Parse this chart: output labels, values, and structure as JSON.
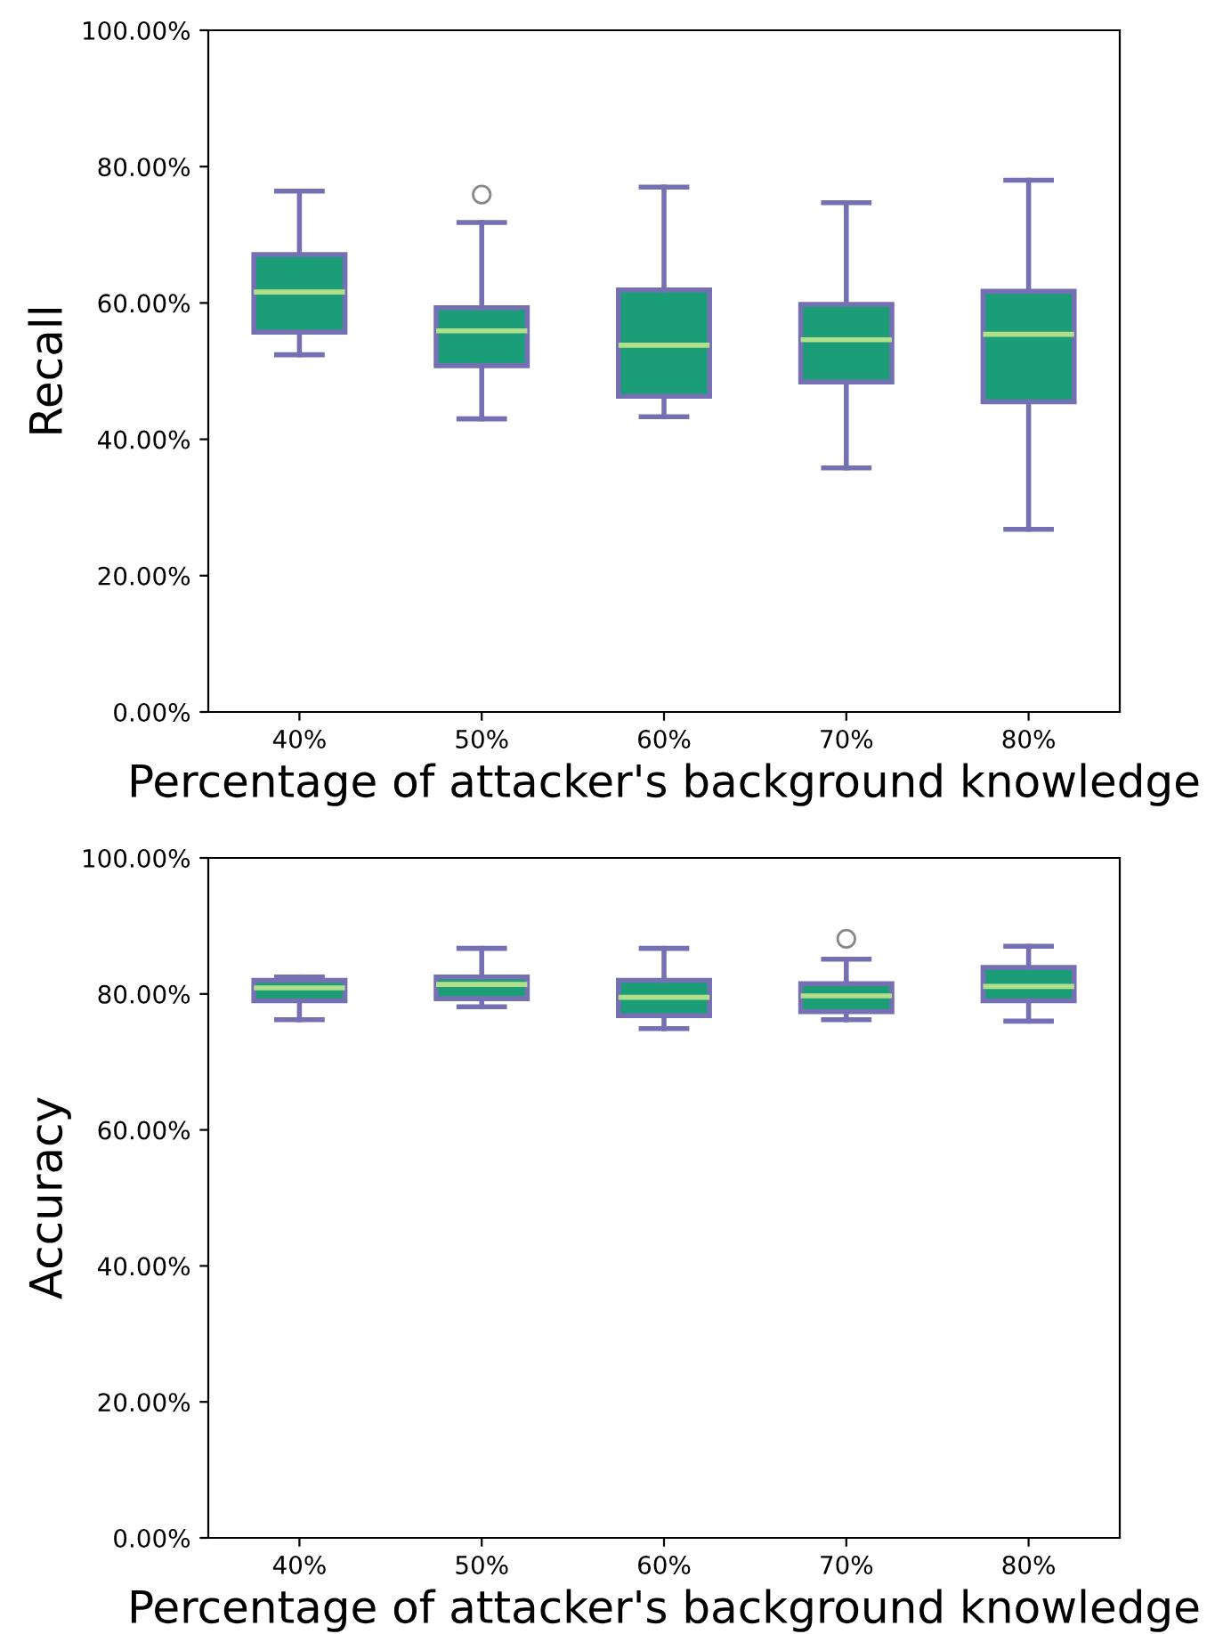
{
  "chart_data": [
    {
      "type": "box",
      "ylabel": "Recall",
      "xlabel": "Percentage of attacker's background knowledge",
      "categories": [
        "40%",
        "50%",
        "60%",
        "70%",
        "80%"
      ],
      "ylim": [
        0,
        100
      ],
      "yticks": [
        {
          "value": 0,
          "label": "0.00%"
        },
        {
          "value": 20,
          "label": "20.00%"
        },
        {
          "value": 40,
          "label": "40.00%"
        },
        {
          "value": 60,
          "label": "60.00%"
        },
        {
          "value": 80,
          "label": "80.00%"
        },
        {
          "value": 100,
          "label": "100.00%"
        }
      ],
      "grid": false,
      "color": "#1b9e77",
      "boxes": [
        {
          "low": 52.4,
          "q1": 55.7,
          "median": 61.6,
          "q3": 67.1,
          "high": 76.4
        },
        {
          "low": 43.0,
          "q1": 50.8,
          "median": 55.9,
          "q3": 59.3,
          "high": 71.8,
          "outliers": [
            75.9
          ]
        },
        {
          "low": 43.3,
          "q1": 46.3,
          "median": 53.8,
          "q3": 61.9,
          "high": 77.0
        },
        {
          "low": 35.8,
          "q1": 48.4,
          "median": 54.6,
          "q3": 59.8,
          "high": 74.7
        },
        {
          "low": 26.8,
          "q1": 45.5,
          "median": 55.4,
          "q3": 61.7,
          "high": 78.0
        }
      ]
    },
    {
      "type": "box",
      "ylabel": "Accuracy",
      "xlabel": "Percentage of attacker's background knowledge",
      "categories": [
        "40%",
        "50%",
        "60%",
        "70%",
        "80%"
      ],
      "ylim": [
        0,
        100
      ],
      "yticks": [
        {
          "value": 0,
          "label": "0.00%"
        },
        {
          "value": 20,
          "label": "20.00%"
        },
        {
          "value": 40,
          "label": "40.00%"
        },
        {
          "value": 60,
          "label": "60.00%"
        },
        {
          "value": 80,
          "label": "80.00%"
        },
        {
          "value": 100,
          "label": "100.00%"
        }
      ],
      "grid": false,
      "color": "#1b9e77",
      "boxes": [
        {
          "low": 76.2,
          "q1": 79.0,
          "median": 80.9,
          "q3": 82.0,
          "high": 82.5
        },
        {
          "low": 78.1,
          "q1": 79.3,
          "median": 81.4,
          "q3": 82.5,
          "high": 86.7
        },
        {
          "low": 74.9,
          "q1": 76.8,
          "median": 79.5,
          "q3": 82.0,
          "high": 86.7
        },
        {
          "low": 76.2,
          "q1": 77.4,
          "median": 79.7,
          "q3": 81.5,
          "high": 85.1,
          "outliers": [
            88.1
          ]
        },
        {
          "low": 76.0,
          "q1": 79.0,
          "median": 81.1,
          "q3": 83.9,
          "high": 87.0
        }
      ]
    }
  ]
}
